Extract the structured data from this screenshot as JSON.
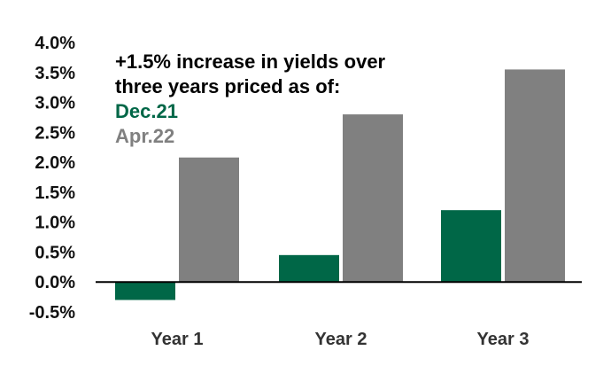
{
  "chart_data": {
    "type": "bar",
    "categories": [
      "Year 1",
      "Year 2",
      "Year 3"
    ],
    "series": [
      {
        "name": "Dec.21",
        "values": [
          -0.3,
          0.45,
          1.2
        ],
        "color": "#006747"
      },
      {
        "name": "Apr.22",
        "values": [
          2.08,
          2.8,
          3.55
        ],
        "color": "#808080"
      }
    ],
    "title": "",
    "xlabel": "",
    "ylabel": "",
    "ylim": [
      -0.5,
      4.0
    ],
    "yticks": [
      "4.0%",
      "3.5%",
      "3.0%",
      "2.5%",
      "2.0%",
      "1.5%",
      "1.0%",
      "0.5%",
      "0.0%",
      "-0.5%"
    ],
    "ytick_values": [
      4.0,
      3.5,
      3.0,
      2.5,
      2.0,
      1.5,
      1.0,
      0.5,
      0.0,
      -0.5
    ],
    "grid": false,
    "legend_position": "top-left",
    "legend_heading_line1": "+1.5% increase in yields over",
    "legend_heading_line2": "three years priced as of:"
  }
}
